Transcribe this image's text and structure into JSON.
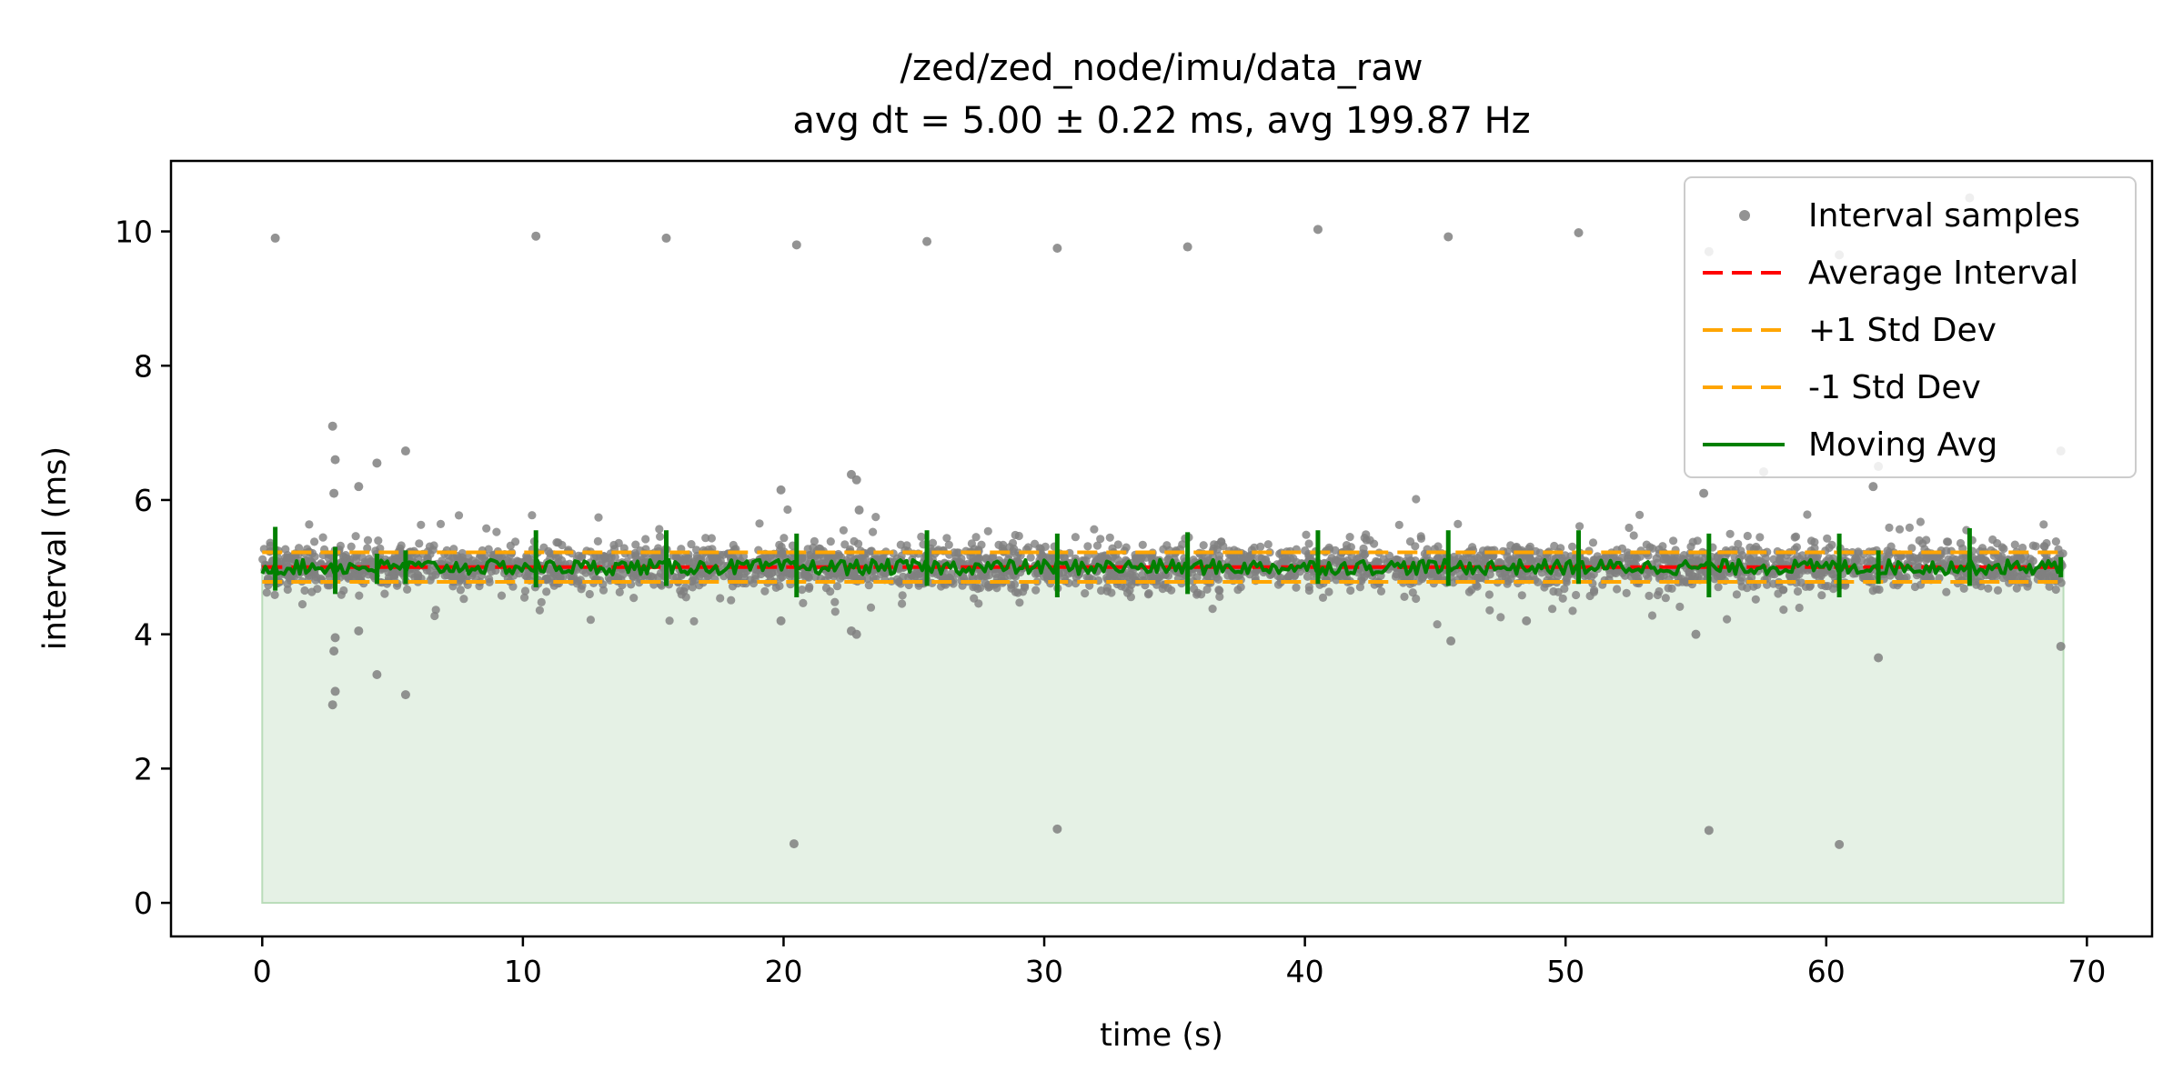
{
  "chart_data": {
    "type": "scatter",
    "title": "/zed/zed_node/imu/data_raw",
    "subtitle": "avg dt = 5.00 ± 0.22 ms, avg 199.87 Hz",
    "xlabel": "time (s)",
    "ylabel": "interval (ms)",
    "xlim": [
      -3.5,
      72.5
    ],
    "ylim": [
      -0.5,
      11.05
    ],
    "x_ticks": [
      0,
      10,
      20,
      30,
      40,
      50,
      60,
      70
    ],
    "y_ticks": [
      0,
      2,
      4,
      6,
      8,
      10
    ],
    "grid": false,
    "legend_position": "top-right",
    "duration_s": 69.1,
    "avg_interval_ms": 5.0,
    "std_interval_ms": 0.22,
    "avg_rate_hz": 199.87,
    "colors": {
      "samples": "#808080",
      "average": "#ff0000",
      "std": "#ffa500",
      "moving_avg": "#008000",
      "fill": "#e5f1e5",
      "fill_edge": "#b9dcb9"
    },
    "series": [
      {
        "name": "Interval samples",
        "kind": "scatter",
        "outliers": [
          [
            0.5,
            9.9
          ],
          [
            10.5,
            9.93
          ],
          [
            15.5,
            9.9
          ],
          [
            20.5,
            9.8
          ],
          [
            25.5,
            9.85
          ],
          [
            30.5,
            9.75
          ],
          [
            35.5,
            9.77
          ],
          [
            40.5,
            10.03
          ],
          [
            45.5,
            9.92
          ],
          [
            50.5,
            9.98
          ],
          [
            55.5,
            9.7
          ],
          [
            60.5,
            9.65
          ],
          [
            65.5,
            10.5
          ],
          [
            2.7,
            7.1
          ],
          [
            2.8,
            6.6
          ],
          [
            2.75,
            6.1
          ],
          [
            4.4,
            6.55
          ],
          [
            5.5,
            6.73
          ],
          [
            3.7,
            6.2
          ],
          [
            22.6,
            6.38
          ],
          [
            22.8,
            6.3
          ],
          [
            19.9,
            6.15
          ],
          [
            22.9,
            5.85
          ],
          [
            55.3,
            6.1
          ],
          [
            57.6,
            6.42
          ],
          [
            61.8,
            6.2
          ],
          [
            69.0,
            6.73
          ],
          [
            62.0,
            6.5
          ],
          [
            2.7,
            2.95
          ],
          [
            2.8,
            3.15
          ],
          [
            5.5,
            3.1
          ],
          [
            4.4,
            3.4
          ],
          [
            2.75,
            3.75
          ],
          [
            2.8,
            3.95
          ],
          [
            3.7,
            4.05
          ],
          [
            22.6,
            4.05
          ],
          [
            22.8,
            4.0
          ],
          [
            45.6,
            3.9
          ],
          [
            62.0,
            3.65
          ],
          [
            69.0,
            3.82
          ],
          [
            55.0,
            4.0
          ],
          [
            19.9,
            4.2
          ],
          [
            48.5,
            4.2
          ],
          [
            20.4,
            0.88
          ],
          [
            30.5,
            1.1
          ],
          [
            55.5,
            1.08
          ],
          [
            60.5,
            0.87
          ]
        ]
      },
      {
        "name": "Average Interval",
        "kind": "hline",
        "y": 5.0
      },
      {
        "name": "+1 Std Dev",
        "kind": "hline",
        "y": 5.22
      },
      {
        "name": "-1 Std Dev",
        "kind": "hline",
        "y": 4.78
      },
      {
        "name": "Moving Avg",
        "kind": "line",
        "spikes": [
          [
            0.5,
            4.65,
            5.6
          ],
          [
            2.8,
            4.6,
            5.3
          ],
          [
            4.4,
            4.75,
            5.2
          ],
          [
            5.5,
            4.75,
            5.25
          ],
          [
            10.5,
            4.7,
            5.55
          ],
          [
            15.5,
            4.72,
            5.55
          ],
          [
            20.5,
            4.55,
            5.5
          ],
          [
            25.5,
            4.72,
            5.55
          ],
          [
            30.5,
            4.55,
            5.5
          ],
          [
            35.5,
            4.6,
            5.52
          ],
          [
            40.5,
            4.75,
            5.55
          ],
          [
            45.5,
            4.72,
            5.55
          ],
          [
            50.5,
            4.75,
            5.55
          ],
          [
            55.5,
            4.55,
            5.5
          ],
          [
            60.5,
            4.55,
            5.5
          ],
          [
            62.0,
            4.75,
            5.25
          ],
          [
            65.5,
            4.72,
            5.58
          ],
          [
            69.0,
            4.85,
            5.15
          ]
        ]
      }
    ]
  }
}
